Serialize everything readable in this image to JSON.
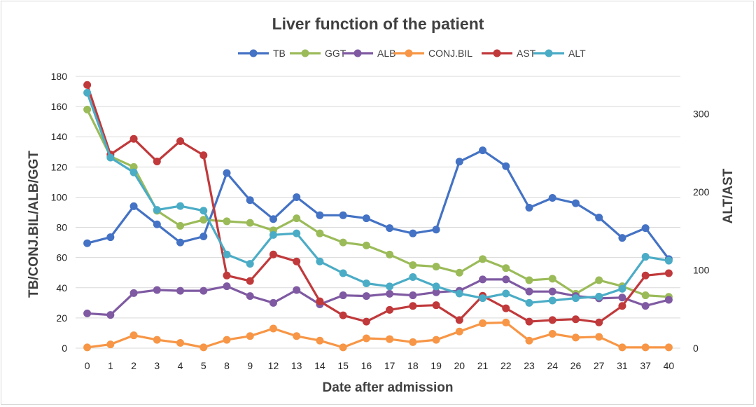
{
  "chart_data": {
    "type": "line",
    "title": "Liver function of the patient",
    "xlabel": "Date after admission",
    "ylabel_left": "TB/CONJ.BIL/ALB/GGT",
    "ylabel_right": "ALT/AST",
    "ylim_left": [
      0,
      180
    ],
    "yticks_left": [
      0,
      20,
      40,
      60,
      80,
      100,
      120,
      140,
      160,
      180
    ],
    "ylim_right": [
      0,
      348
    ],
    "yticks_right": [
      0,
      100,
      200,
      300
    ],
    "grid": true,
    "legend_position": "top",
    "categories": [
      "0",
      "1",
      "2",
      "3",
      "4",
      "5",
      "8",
      "9",
      "12",
      "13",
      "14",
      "15",
      "16",
      "17",
      "18",
      "19",
      "20",
      "21",
      "22",
      "23",
      "24",
      "26",
      "27",
      "31",
      "37",
      "40"
    ],
    "series": [
      {
        "name": "TB",
        "axis": "left",
        "color": "#4472c4",
        "values": [
          69.5,
          73.5,
          94,
          82,
          70,
          74,
          116,
          98,
          85.5,
          100,
          88,
          88,
          86,
          79.5,
          76,
          78.5,
          123.5,
          131,
          120.5,
          93,
          99.5,
          96,
          86.5,
          73,
          79.5,
          59
        ]
      },
      {
        "name": "GGT",
        "axis": "left",
        "color": "#9bbb59",
        "values": [
          158,
          127,
          120,
          91,
          81,
          85,
          84,
          83,
          78,
          86,
          76,
          70,
          68,
          62,
          55,
          54,
          50,
          59,
          53,
          45,
          46,
          36,
          45,
          41,
          35,
          34
        ]
      },
      {
        "name": "ALB",
        "axis": "left",
        "color": "#7f5aa2",
        "values": [
          23,
          22,
          36.5,
          38.5,
          38,
          38,
          41,
          34.5,
          30,
          38.5,
          29,
          35,
          34.5,
          36,
          35,
          37,
          38,
          45.5,
          45.5,
          37.5,
          37.5,
          34.5,
          33,
          33.5,
          28,
          32
        ]
      },
      {
        "name": "CONJ.BIL",
        "axis": "left",
        "color": "#f79646",
        "values": [
          0.5,
          2.5,
          8.5,
          5.5,
          3.5,
          0.5,
          5.5,
          8,
          13,
          8,
          5,
          0.5,
          6.5,
          6,
          4,
          5.5,
          11,
          16.5,
          17,
          5,
          9.5,
          7,
          7.5,
          0.5,
          0.5,
          0.5
        ]
      },
      {
        "name": "AST",
        "axis": "right",
        "color": "#c0393b",
        "values": [
          337,
          248,
          268,
          239,
          265,
          247,
          93,
          86,
          120,
          111,
          60,
          42,
          34,
          49,
          54,
          55,
          36,
          67,
          51,
          34,
          36,
          37,
          33,
          54,
          93,
          96
        ]
      },
      {
        "name": "ALT",
        "axis": "right",
        "color": "#4bacc6",
        "values": [
          327,
          244,
          225,
          177,
          182,
          176,
          120,
          108,
          145,
          147,
          111,
          96,
          83,
          79,
          91,
          79,
          70,
          64,
          70,
          58,
          61,
          64,
          66,
          76,
          117,
          112
        ]
      }
    ]
  }
}
